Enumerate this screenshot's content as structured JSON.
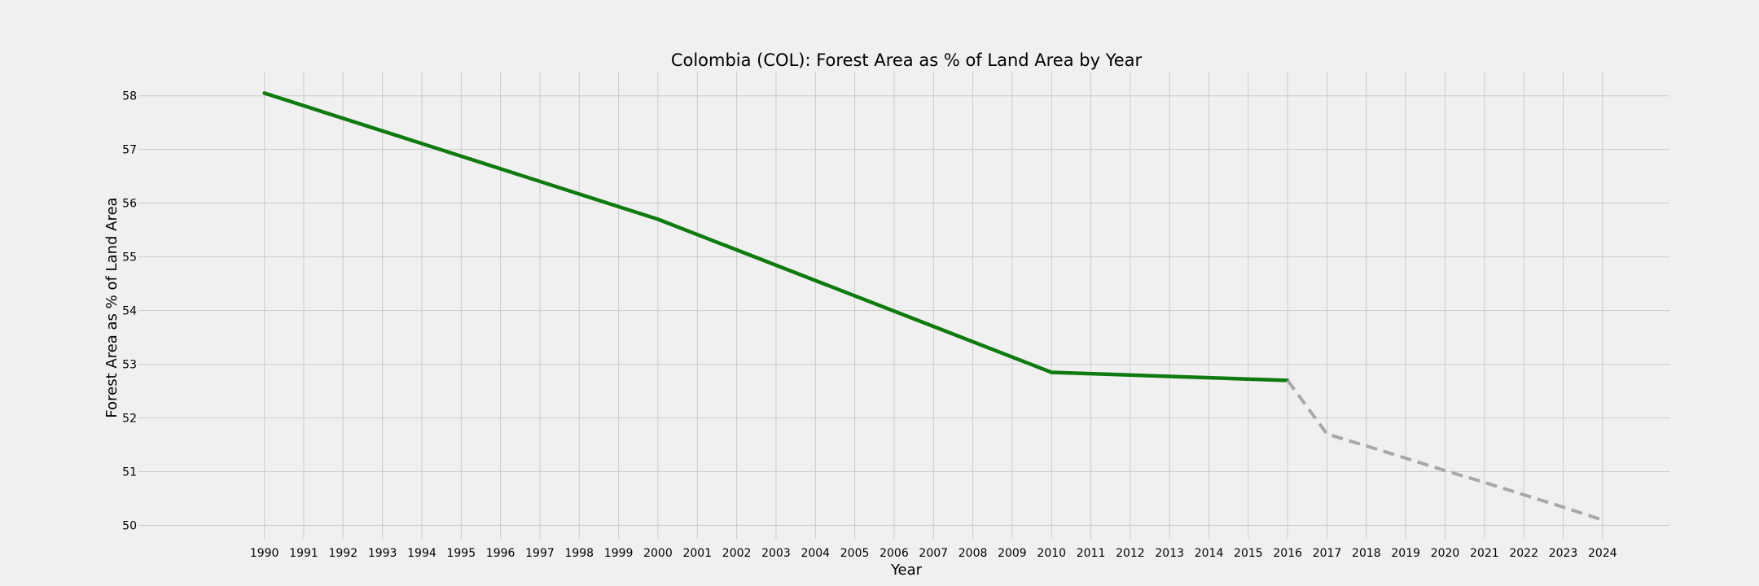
{
  "chart_data": {
    "type": "line",
    "title": "Colombia (COL): Forest Area as % of Land Area by Year",
    "xlabel": "Year",
    "ylabel": "Forest Area as % of Land Area",
    "xlim": [
      1986.8,
      2025.7
    ],
    "ylim": [
      49.75,
      58.45
    ],
    "x_ticks": [
      1990,
      1991,
      1992,
      1993,
      1994,
      1995,
      1996,
      1997,
      1998,
      1999,
      2000,
      2001,
      2002,
      2003,
      2004,
      2005,
      2006,
      2007,
      2008,
      2009,
      2010,
      2011,
      2012,
      2013,
      2014,
      2015,
      2016,
      2017,
      2018,
      2019,
      2020,
      2021,
      2022,
      2023,
      2024
    ],
    "y_ticks": [
      50,
      51,
      52,
      53,
      54,
      55,
      56,
      57,
      58
    ],
    "grid": true,
    "series": [
      {
        "style": "solid",
        "color": "#0f7a0f",
        "x": [
          1990,
          2000,
          2010,
          2016
        ],
        "y": [
          58.05,
          55.7,
          52.85,
          52.7
        ]
      },
      {
        "style": "dashed",
        "color": "#a8a8a8",
        "x": [
          2016,
          2017,
          2018,
          2019,
          2020,
          2021,
          2022,
          2023,
          2024
        ],
        "y": [
          52.7,
          51.7,
          51.48,
          51.25,
          51.02,
          50.8,
          50.57,
          50.34,
          50.1
        ]
      }
    ]
  }
}
